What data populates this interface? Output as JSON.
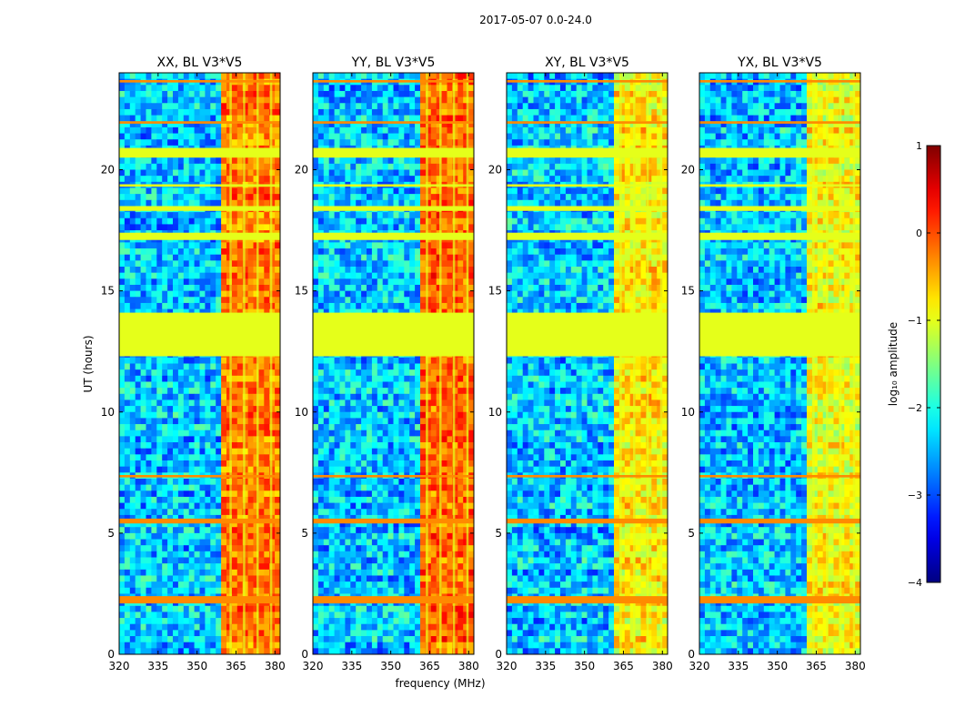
{
  "chart_data": {
    "type": "heatmap",
    "suptitle": "2017-05-07 0.0-24.0",
    "xlabel": "frequency (MHz)",
    "ylabel": "UT (hours)",
    "xlim": [
      320,
      382
    ],
    "ylim": [
      0,
      24
    ],
    "xticks": [
      320,
      335,
      350,
      365,
      380
    ],
    "yticks": [
      0,
      5,
      10,
      15,
      20
    ],
    "colorbar": {
      "label": "log₁₀ amplitude",
      "range": [
        -4,
        1
      ],
      "ticks": [
        -4,
        -3,
        -2,
        -1,
        0,
        1
      ],
      "tick_labels": [
        "−4",
        "−3",
        "−2",
        "−1",
        "0",
        "1"
      ]
    },
    "background_level": -2.4,
    "flagged_value": -1.0,
    "flagged_rows": [
      [
        12.3,
        14.1
      ],
      [
        17.1,
        17.4
      ],
      [
        20.5,
        20.9
      ],
      [
        18.3,
        18.5
      ],
      [
        19.3,
        19.4
      ]
    ],
    "rfi_rows": [
      [
        2.1,
        2.4
      ],
      [
        5.4,
        5.6
      ],
      [
        7.3,
        7.4
      ],
      [
        21.9,
        22.0
      ],
      [
        23.6,
        23.7
      ]
    ],
    "bright_band_mhz": [
      360,
      382
    ],
    "panels": [
      {
        "title": "XX, BL V3*V5",
        "band_start_mhz": 359.5,
        "band_level": -0.2
      },
      {
        "title": "YY, BL V3*V5",
        "band_start_mhz": 360.5,
        "band_level": -0.1
      },
      {
        "title": "XY, BL V3*V5",
        "band_start_mhz": 360.5,
        "band_level": -0.8
      },
      {
        "title": "YX, BL V3*V5",
        "band_start_mhz": 360.5,
        "band_level": -0.9
      }
    ]
  }
}
